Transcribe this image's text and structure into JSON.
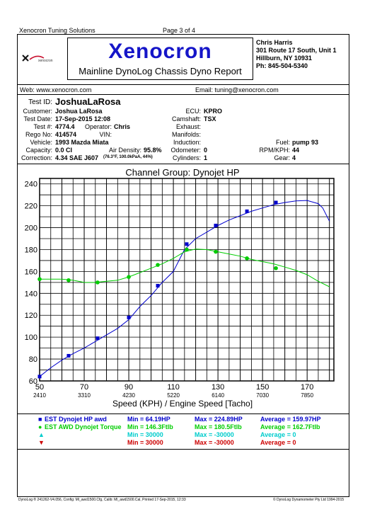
{
  "header": {
    "company": "Xenocron Tuning Solutions",
    "page": "Page 3 of 4"
  },
  "brand": {
    "name": "Xenocron",
    "subtitle": "Mainline DynoLog Chassis Dyno Report"
  },
  "contact": {
    "name": "Chris Harris",
    "address1": "301 Route 17 South, Unit 1",
    "address2": "Hillburn, NY 10931",
    "phone": "Ph: 845-504-5340",
    "web": "Web: www.xenocron.com",
    "email": "Email: tuning@xenocron.com"
  },
  "test": {
    "test_id_label": "Test ID:",
    "test_id": "JoshuaLaRosa",
    "customer_label": "Customer:",
    "customer": "Joshua LaRosa",
    "test_date_label": "Test Date:",
    "test_date": "17-Sep-2015 12:08",
    "test_no_label": "Test #:",
    "test_no": "4774.4",
    "operator_label": "Operator:",
    "operator": "Chris",
    "rego_label": "Rego No:",
    "rego": "414574",
    "vin_label": "VIN:",
    "vin": "",
    "vehicle_label": "Vehicle:",
    "vehicle": "1993 Mazda Miata",
    "capacity_label": "Capacity:",
    "capacity": "0.0 CI",
    "air_density_label": "Air Density:",
    "air_density": "95.8%",
    "correction_label": "Correction:",
    "correction": "4.34 SAE J607",
    "conditions": "(76.3°F, 100.0kPaA, 44%)",
    "ecu_label": "ECU:",
    "ecu": "KPRO",
    "camshaft_label": "Camshaft:",
    "camshaft": "TSX",
    "exhaust_label": "Exhaust:",
    "exhaust": "",
    "manifolds_label": "Manifolds:",
    "manifolds": "",
    "induction_label": "Induction:",
    "induction": "",
    "odometer_label": "Odometer:",
    "odometer": "0",
    "cylinders_label": "Cylinders:",
    "cylinders": "1",
    "fuel_label": "Fuel:",
    "fuel": "pump 93",
    "rpm_kph_label": "RPM/KPH:",
    "rpm_kph": "44",
    "gear_label": "Gear:",
    "gear": "4"
  },
  "chart_data": {
    "type": "line",
    "title": "Channel Group: Dynojet HP",
    "xlabel": "Speed (KPH) / Engine Speed [Tacho]",
    "xlim": [
      50,
      182
    ],
    "ylim": [
      60,
      245
    ],
    "x_ticks": [
      50,
      70,
      90,
      110,
      130,
      150,
      170
    ],
    "x_tick_labels": [
      "50",
      "70",
      "90",
      "110",
      "130",
      "150",
      "170"
    ],
    "x_secondary_labels": [
      "2410",
      "3310",
      "4230",
      "5220",
      "6140",
      "7030",
      "7850"
    ],
    "y_ticks": [
      60,
      80,
      100,
      120,
      140,
      160,
      180,
      200,
      220,
      240
    ],
    "grid": true,
    "series": [
      {
        "name": "EST Dynojet HP awd",
        "color": "#0000cc",
        "x": [
          50,
          55,
          60,
          65,
          70,
          75,
          80,
          85,
          90,
          95,
          100,
          105,
          110,
          115,
          120,
          125,
          130,
          135,
          140,
          145,
          150,
          155,
          160,
          165,
          170,
          175,
          177,
          180
        ],
        "y": [
          64,
          72,
          79,
          85,
          90,
          96,
          102,
          108,
          116,
          128,
          138,
          150,
          160,
          180,
          190,
          196,
          202,
          207,
          211,
          215,
          218,
          221,
          223,
          224.5,
          224.9,
          222,
          218,
          206
        ],
        "markers_x": [
          50,
          63,
          76,
          90,
          103,
          116,
          129,
          143,
          156
        ],
        "markers_y": [
          64,
          83,
          99,
          118,
          147,
          185,
          202,
          215,
          223
        ]
      },
      {
        "name": "EST AWD Dynojet Torque",
        "color": "#00cc00",
        "x": [
          50,
          55,
          60,
          65,
          70,
          75,
          80,
          85,
          90,
          95,
          100,
          105,
          110,
          115,
          120,
          125,
          130,
          135,
          140,
          145,
          150,
          155,
          160,
          165,
          170,
          175,
          180
        ],
        "y": [
          153,
          153,
          153,
          152,
          150,
          150,
          151,
          152,
          155,
          159,
          163,
          167,
          172,
          178,
          180.5,
          180,
          178,
          176,
          174,
          171,
          169,
          167,
          164,
          161,
          157,
          151,
          146
        ],
        "markers_x": [
          50,
          63,
          76,
          90,
          103,
          116,
          129,
          143,
          156
        ],
        "markers_y": [
          153,
          152,
          150,
          155,
          166,
          180,
          178,
          172,
          163
        ]
      }
    ]
  },
  "legend": [
    {
      "name": "EST Dynojet HP awd",
      "color": "#0000cc",
      "icon": "square-marker-icon",
      "min": "Min = 64.19HP",
      "max": "Max = 224.89HP",
      "avg": "Average = 159.97HP"
    },
    {
      "name": "EST AWD Dynojet Torque",
      "color": "#00cc00",
      "icon": "dot-marker-icon",
      "min": "Min = 146.3Ftlb",
      "max": "Max = 180.5Ftlb",
      "avg": "Average = 162.7Ftlb"
    },
    {
      "name": "",
      "color": "#00cccc",
      "icon": "triangle-up-marker-icon",
      "min": "Min = 30000",
      "max": "Max = -30000",
      "avg": "Average = 0"
    },
    {
      "name": "",
      "color": "#cc0000",
      "icon": "triangle-down-marker-icon",
      "min": "Min = 30000",
      "max": "Max = -30000",
      "avg": "Average = 0"
    }
  ],
  "footer": {
    "left": "DynoLog ® 241262-V4.056, Config: Ml_awd1500.Cfg, Calib: Ml_awd1500.Cal, Printed 17-Sep-2015, 12:33",
    "right": "© DynoLog Dynamometer Pty Ltd 1994-2015"
  }
}
